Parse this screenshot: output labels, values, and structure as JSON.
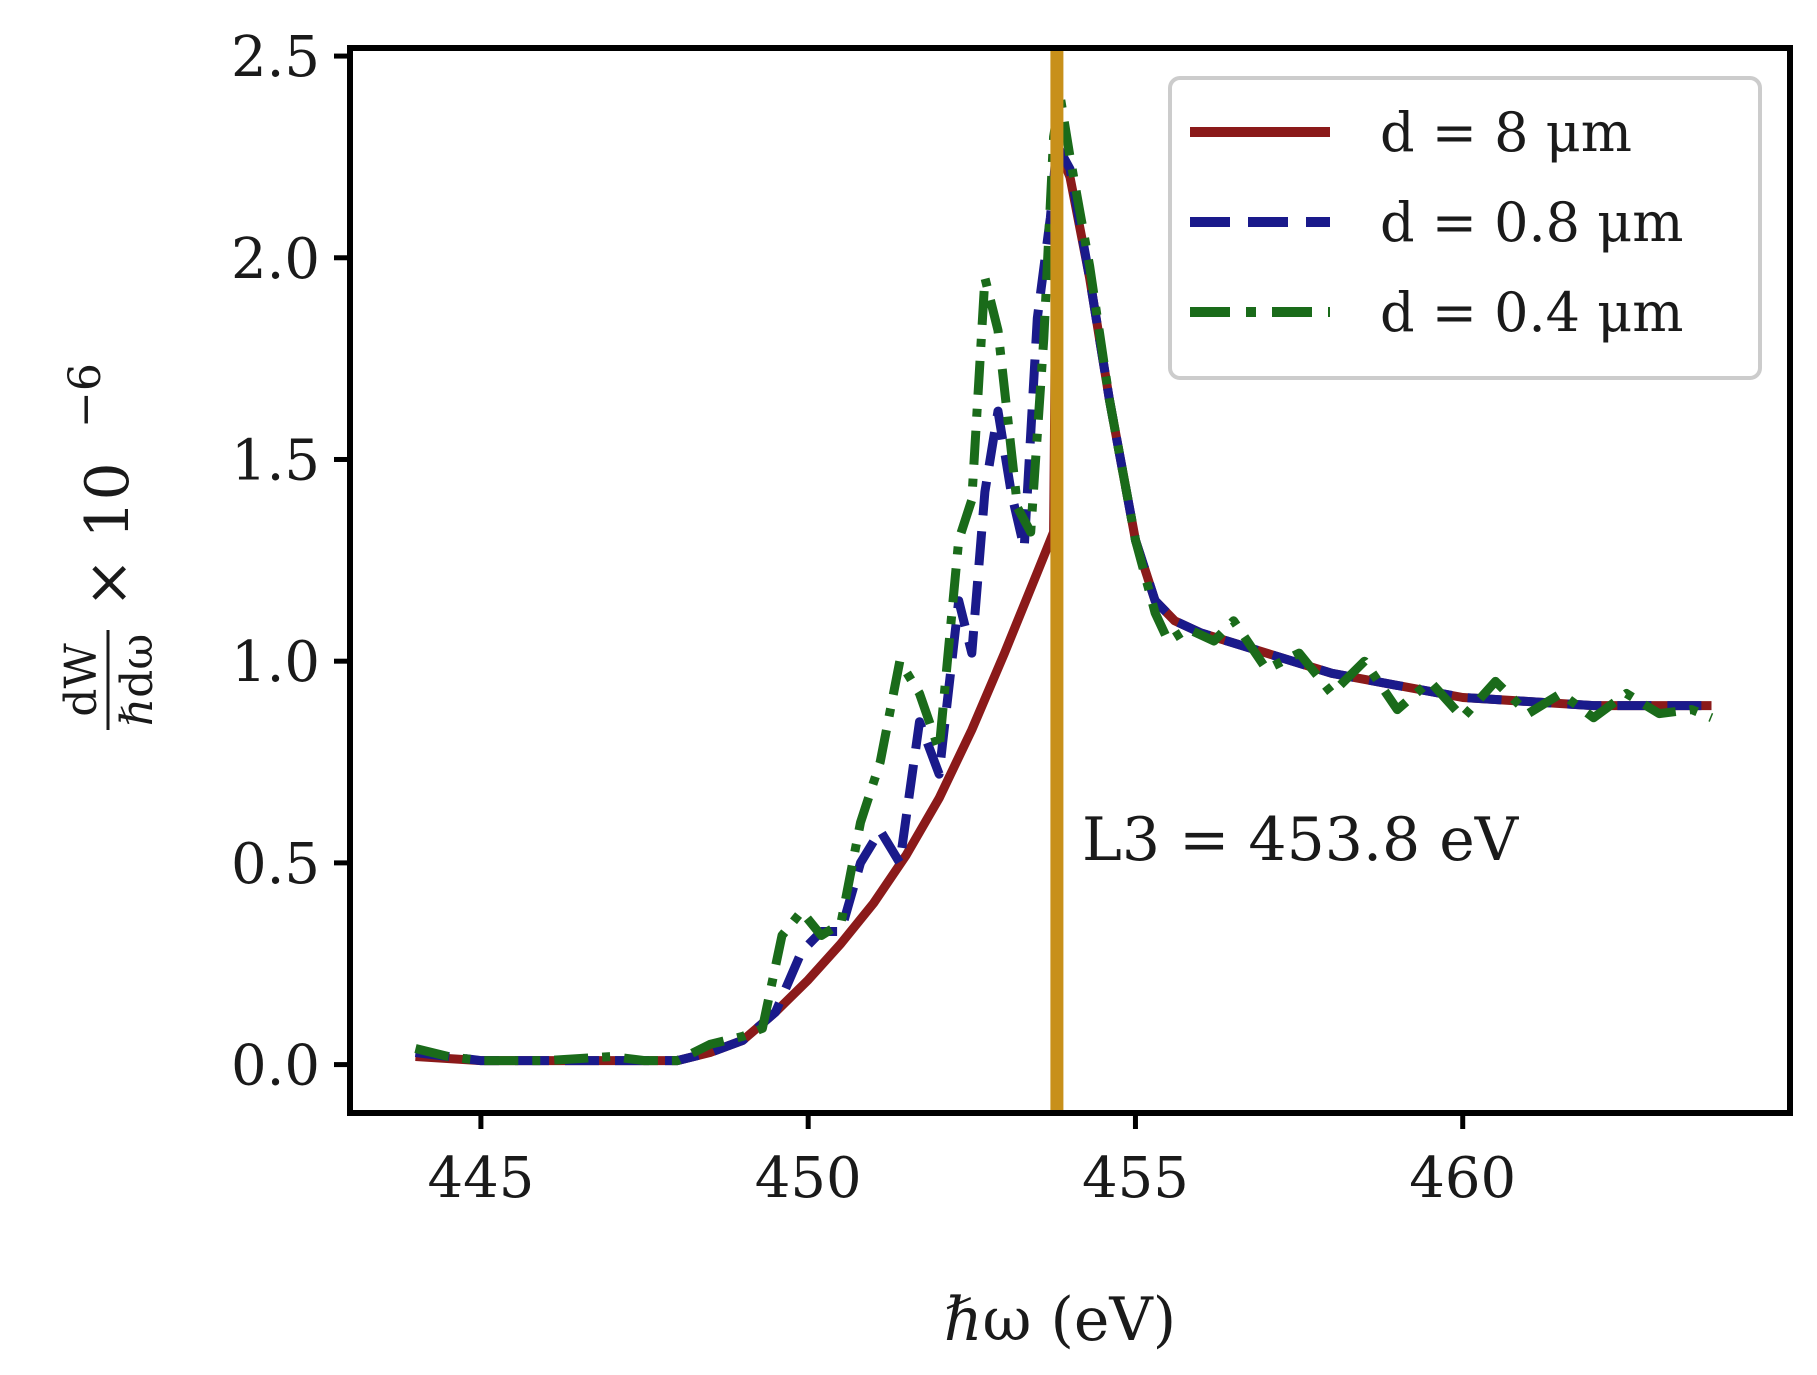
{
  "chart_data": {
    "type": "line",
    "title": "",
    "xlabel": "ℏω (eV)",
    "ylabel": "dW/ℏdω × 10⁻⁶",
    "ylabel_parts": {
      "numerator": "dW",
      "denominator": "ℏdω",
      "multiplier": "× 10",
      "exponent": "−6"
    },
    "xlim": [
      443.0,
      465.0
    ],
    "ylim": [
      -0.12,
      2.52
    ],
    "xticks": [
      445,
      450,
      455,
      460
    ],
    "xtick_labels": [
      "445",
      "450",
      "455",
      "460"
    ],
    "yticks": [
      0.0,
      0.5,
      1.0,
      1.5,
      2.0,
      2.5
    ],
    "ytick_labels": [
      "0.0",
      "0.5",
      "1.0",
      "1.5",
      "2.0",
      "2.5"
    ],
    "grid": false,
    "legend_position": "top-right",
    "vline": {
      "x": 453.8,
      "color": "#c8901a",
      "label": "L3 = 453.8 eV"
    },
    "series": [
      {
        "name": "d = 8 μm",
        "color": "#8b1a1a",
        "dash": "solid",
        "points": [
          [
            444.0,
            0.02
          ],
          [
            445.0,
            0.01
          ],
          [
            446.0,
            0.01
          ],
          [
            447.0,
            0.01
          ],
          [
            448.0,
            0.01
          ],
          [
            448.5,
            0.03
          ],
          [
            449.0,
            0.06
          ],
          [
            449.5,
            0.13
          ],
          [
            450.0,
            0.21
          ],
          [
            450.5,
            0.3
          ],
          [
            451.0,
            0.4
          ],
          [
            451.5,
            0.52
          ],
          [
            452.0,
            0.66
          ],
          [
            452.5,
            0.83
          ],
          [
            453.0,
            1.02
          ],
          [
            453.5,
            1.22
          ],
          [
            453.75,
            1.32
          ],
          [
            453.8,
            2.28
          ],
          [
            454.0,
            2.2
          ],
          [
            454.3,
            1.95
          ],
          [
            454.6,
            1.65
          ],
          [
            455.0,
            1.3
          ],
          [
            455.3,
            1.15
          ],
          [
            455.6,
            1.1
          ],
          [
            456.0,
            1.07
          ],
          [
            457.0,
            1.02
          ],
          [
            458.0,
            0.97
          ],
          [
            459.0,
            0.94
          ],
          [
            460.0,
            0.91
          ],
          [
            461.0,
            0.9
          ],
          [
            462.0,
            0.89
          ],
          [
            463.0,
            0.89
          ],
          [
            463.8,
            0.89
          ]
        ]
      },
      {
        "name": "d = 0.8 μm",
        "color": "#1a1a8b",
        "dash": "dashed",
        "points": [
          [
            444.0,
            0.03
          ],
          [
            445.0,
            0.01
          ],
          [
            446.0,
            0.01
          ],
          [
            447.0,
            0.01
          ],
          [
            448.0,
            0.01
          ],
          [
            448.5,
            0.03
          ],
          [
            449.0,
            0.06
          ],
          [
            449.5,
            0.13
          ],
          [
            449.9,
            0.28
          ],
          [
            450.2,
            0.33
          ],
          [
            450.5,
            0.33
          ],
          [
            450.8,
            0.5
          ],
          [
            451.1,
            0.58
          ],
          [
            451.4,
            0.5
          ],
          [
            451.7,
            0.85
          ],
          [
            452.0,
            0.72
          ],
          [
            452.3,
            1.15
          ],
          [
            452.5,
            1.02
          ],
          [
            452.7,
            1.42
          ],
          [
            452.9,
            1.62
          ],
          [
            453.1,
            1.42
          ],
          [
            453.3,
            1.28
          ],
          [
            453.5,
            1.85
          ],
          [
            453.7,
            2.1
          ],
          [
            453.8,
            2.28
          ],
          [
            454.0,
            2.22
          ],
          [
            454.3,
            1.95
          ],
          [
            454.6,
            1.65
          ],
          [
            455.0,
            1.3
          ],
          [
            455.3,
            1.15
          ],
          [
            455.6,
            1.1
          ],
          [
            456.0,
            1.07
          ],
          [
            457.0,
            1.02
          ],
          [
            458.0,
            0.97
          ],
          [
            459.0,
            0.94
          ],
          [
            460.0,
            0.91
          ],
          [
            461.0,
            0.9
          ],
          [
            462.0,
            0.89
          ],
          [
            463.0,
            0.89
          ],
          [
            463.8,
            0.89
          ]
        ]
      },
      {
        "name": "d = 0.4 μm",
        "color": "#1a6b1a",
        "dash": "dashdot",
        "points": [
          [
            444.0,
            0.04
          ],
          [
            444.5,
            0.02
          ],
          [
            445.0,
            0.01
          ],
          [
            446.0,
            0.01
          ],
          [
            447.0,
            0.02
          ],
          [
            447.5,
            0.01
          ],
          [
            448.0,
            0.01
          ],
          [
            448.5,
            0.05
          ],
          [
            449.0,
            0.07
          ],
          [
            449.3,
            0.09
          ],
          [
            449.6,
            0.32
          ],
          [
            449.9,
            0.38
          ],
          [
            450.2,
            0.32
          ],
          [
            450.5,
            0.35
          ],
          [
            450.8,
            0.6
          ],
          [
            451.1,
            0.75
          ],
          [
            451.4,
            1.0
          ],
          [
            451.7,
            0.92
          ],
          [
            452.0,
            0.78
          ],
          [
            452.3,
            1.3
          ],
          [
            452.5,
            1.4
          ],
          [
            452.7,
            1.95
          ],
          [
            452.9,
            1.82
          ],
          [
            453.2,
            1.38
          ],
          [
            453.4,
            1.32
          ],
          [
            453.6,
            1.8
          ],
          [
            453.75,
            2.3
          ],
          [
            453.85,
            2.4
          ],
          [
            454.0,
            2.25
          ],
          [
            454.3,
            1.98
          ],
          [
            454.6,
            1.65
          ],
          [
            455.0,
            1.3
          ],
          [
            455.3,
            1.12
          ],
          [
            455.5,
            1.05
          ],
          [
            455.8,
            1.08
          ],
          [
            456.2,
            1.05
          ],
          [
            456.5,
            1.1
          ],
          [
            457.0,
            0.98
          ],
          [
            457.5,
            1.02
          ],
          [
            458.0,
            0.92
          ],
          [
            458.5,
            1.0
          ],
          [
            459.0,
            0.88
          ],
          [
            459.5,
            0.95
          ],
          [
            460.0,
            0.86
          ],
          [
            460.5,
            0.95
          ],
          [
            461.0,
            0.87
          ],
          [
            461.5,
            0.92
          ],
          [
            462.0,
            0.86
          ],
          [
            462.5,
            0.92
          ],
          [
            463.0,
            0.87
          ],
          [
            463.5,
            0.88
          ],
          [
            463.8,
            0.86
          ]
        ]
      }
    ]
  }
}
